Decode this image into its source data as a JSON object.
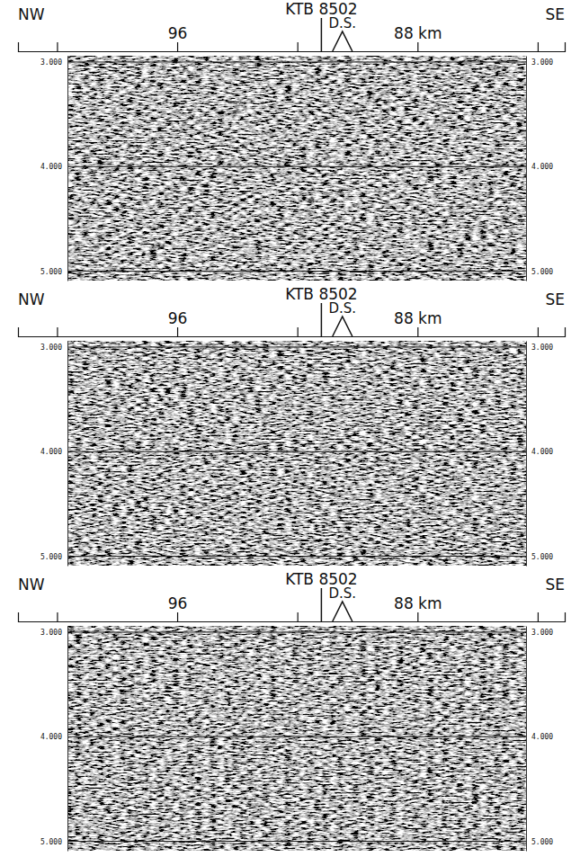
{
  "chart_data": [
    {
      "type": "seismic_section",
      "direction_labels": [
        "NW",
        "SE"
      ],
      "annotations": [
        {
          "text": "KTB 8502",
          "x": 91.2
        },
        {
          "text": "D.S.",
          "x": 90.5
        }
      ],
      "xlim": [
        101.3,
        83.1
      ],
      "xticks": [
        {
          "value": 100,
          "label": null
        },
        {
          "value": 96,
          "label": "96"
        },
        {
          "value": 92,
          "label": null
        },
        {
          "value": 88,
          "label": "88 km"
        },
        {
          "value": 84,
          "label": null
        }
      ],
      "ylim": [
        2.94,
        5.09
      ],
      "yticks": [
        {
          "value": 3,
          "label": "3.000"
        },
        {
          "value": 4,
          "label": "4.000"
        },
        {
          "value": 5,
          "label": "5.000"
        }
      ],
      "grid": true
    },
    {
      "type": "seismic_section",
      "direction_labels": [
        "NW",
        "SE"
      ],
      "annotations": [
        {
          "text": "KTB 8502",
          "x": 91.2
        },
        {
          "text": "D.S.",
          "x": 90.5
        }
      ],
      "xlim": [
        101.3,
        83.1
      ],
      "xticks": [
        {
          "value": 100,
          "label": null
        },
        {
          "value": 96,
          "label": "96"
        },
        {
          "value": 92,
          "label": null
        },
        {
          "value": 88,
          "label": "88 km"
        },
        {
          "value": 84,
          "label": null
        }
      ],
      "ylim": [
        2.94,
        5.09
      ],
      "yticks": [
        {
          "value": 3,
          "label": "3.000"
        },
        {
          "value": 4,
          "label": "4.000"
        },
        {
          "value": 5,
          "label": "5.000"
        }
      ],
      "grid": true
    },
    {
      "type": "seismic_section",
      "direction_labels": [
        "NW",
        "SE"
      ],
      "annotations": [
        {
          "text": "KTB 8502",
          "x": 91.2
        },
        {
          "text": "D.S.",
          "x": 90.5
        }
      ],
      "xlim": [
        101.3,
        83.1
      ],
      "xticks": [
        {
          "value": 100,
          "label": null
        },
        {
          "value": 96,
          "label": "96"
        },
        {
          "value": 92,
          "label": null
        },
        {
          "value": 88,
          "label": "88 km"
        },
        {
          "value": 84,
          "label": null
        }
      ],
      "ylim": [
        2.94,
        5.09
      ],
      "yticks": [
        {
          "value": 3,
          "label": "3.000"
        },
        {
          "value": 4,
          "label": "4.000"
        },
        {
          "value": 5,
          "label": "5.000"
        }
      ],
      "grid": true
    }
  ]
}
